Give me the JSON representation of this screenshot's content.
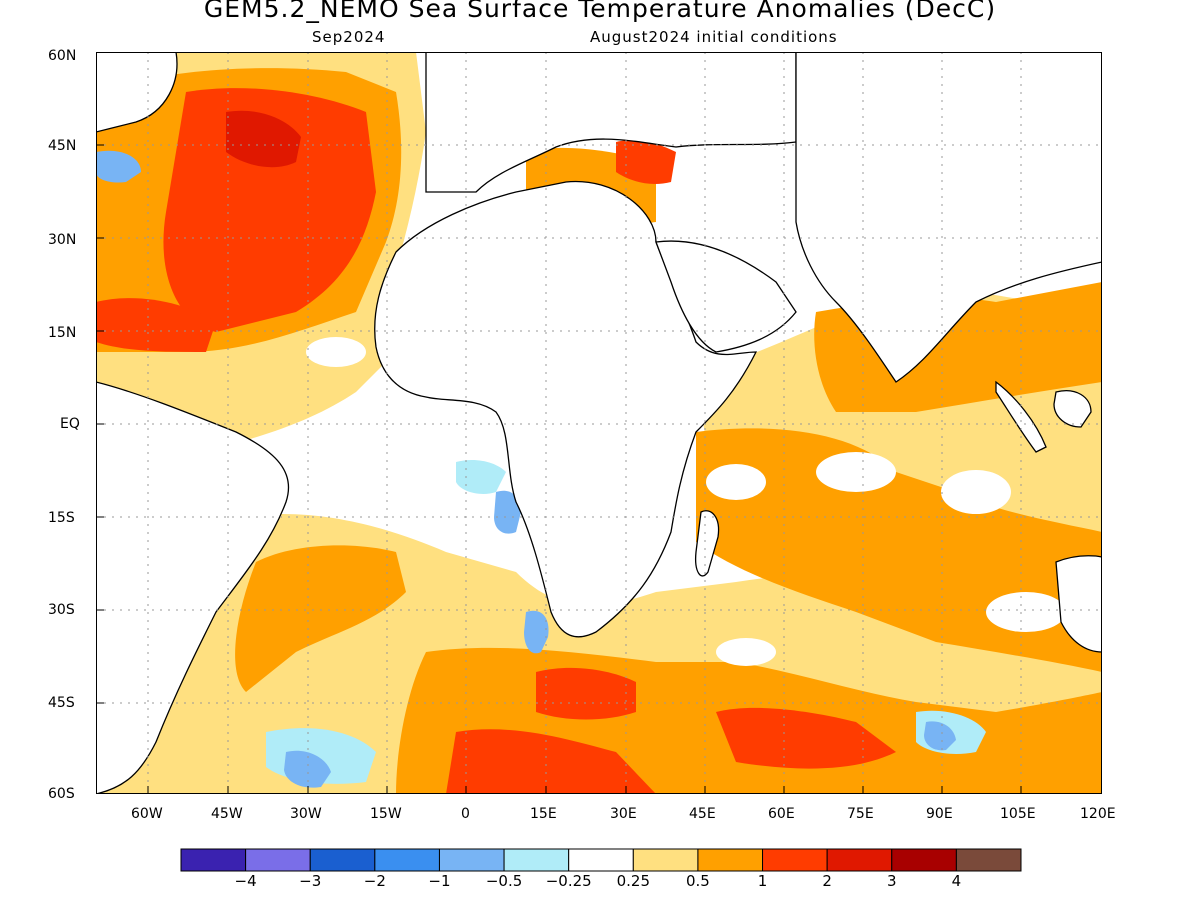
{
  "header": {
    "title": "GEM5.2_NEMO Sea Surface Temperature Anomalies (DecC)",
    "target_month": "Sep2024",
    "initial_conditions": "August2024 initial conditions"
  },
  "map": {
    "lat_labels": [
      "60N",
      "45N",
      "30N",
      "15N",
      "EQ",
      "15S",
      "30S",
      "45S",
      "60S"
    ],
    "lon_labels": [
      "60W",
      "45W",
      "30W",
      "15W",
      "0",
      "15E",
      "30E",
      "45E",
      "60E",
      "75E",
      "90E",
      "105E",
      "120E"
    ]
  },
  "legend": {
    "labels": [
      "−4",
      "−3",
      "−2",
      "−1",
      "−0.5",
      "−0.25",
      "0.25",
      "0.5",
      "1",
      "2",
      "3",
      "4"
    ],
    "colors": [
      "#3a22b0",
      "#7a6ee8",
      "#1a5fd0",
      "#3a8ff0",
      "#78b4f4",
      "#b0ecf8",
      "#ffffff",
      "#ffe080",
      "#ffa000",
      "#ff3c00",
      "#e01800",
      "#a80000",
      "#7a4a3a"
    ]
  }
}
